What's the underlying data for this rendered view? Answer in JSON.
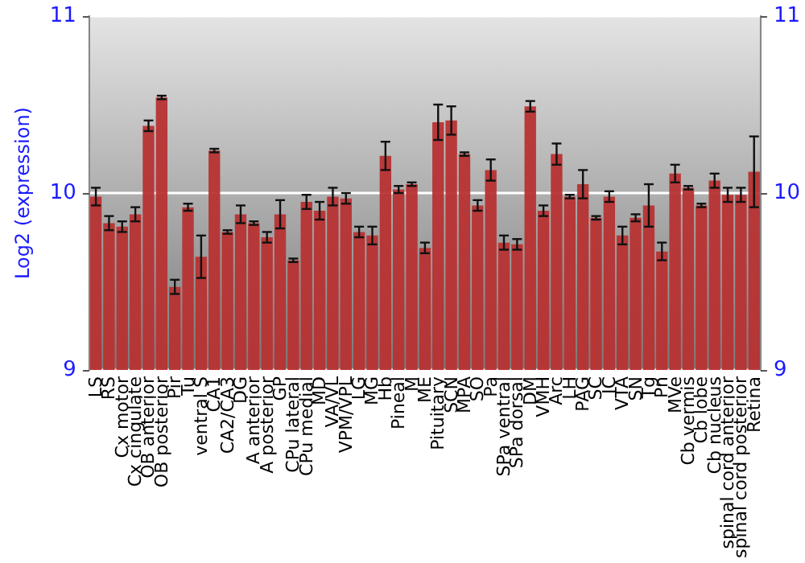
{
  "chart_data": {
    "type": "bar",
    "ylabel": "Log2 (expression)",
    "categories": [
      "LS",
      "RS",
      "Cx motor",
      "Cx cingulate",
      "OB anterior",
      "OB posterior",
      "Pir",
      "Tu",
      "ventral S",
      "CA1",
      "CA2/CA3",
      "DG",
      "A anterior",
      "A posterior",
      "GP",
      "CPu lateral",
      "CPu medial",
      "MD",
      "VA/VL",
      "VPM/VPL",
      "LG",
      "MG",
      "Hb",
      "Pineal",
      "M",
      "ME",
      "Pituitary",
      "SCN",
      "MPA",
      "SO",
      "Pa",
      "SPa ventral",
      "SPa dorsal",
      "DM",
      "VMH",
      "Arc",
      "LH",
      "PAG",
      "SC",
      "IC",
      "VTA",
      "SN",
      "Tg",
      "Pn",
      "MVe",
      "Cb vermis",
      "Cb lobe",
      "Cb nucleus",
      "spinal cord anterior",
      "spinal cord posterior",
      "Retina"
    ],
    "values": [
      9.98,
      9.83,
      9.81,
      9.88,
      10.38,
      10.54,
      9.47,
      9.92,
      9.64,
      10.24,
      9.78,
      9.88,
      9.83,
      9.75,
      9.88,
      9.62,
      9.95,
      9.9,
      9.98,
      9.97,
      9.78,
      9.76,
      10.21,
      10.02,
      10.05,
      9.69,
      10.4,
      10.41,
      10.22,
      9.93,
      10.13,
      9.72,
      9.71,
      10.49,
      9.9,
      10.22,
      9.98,
      10.05,
      9.86,
      9.98,
      9.76,
      9.86,
      9.93,
      9.67,
      10.11,
      10.03,
      9.93,
      10.07,
      9.99,
      9.99,
      10.12
    ],
    "errors": [
      0.05,
      0.04,
      0.03,
      0.04,
      0.03,
      0.01,
      0.04,
      0.02,
      0.12,
      0.01,
      0.01,
      0.05,
      0.01,
      0.03,
      0.08,
      0.01,
      0.04,
      0.05,
      0.05,
      0.03,
      0.03,
      0.05,
      0.08,
      0.02,
      0.01,
      0.03,
      0.1,
      0.08,
      0.01,
      0.03,
      0.06,
      0.04,
      0.03,
      0.03,
      0.03,
      0.06,
      0.01,
      0.08,
      0.01,
      0.03,
      0.05,
      0.02,
      0.12,
      0.05,
      0.05,
      0.01,
      0.01,
      0.04,
      0.04,
      0.04,
      0.2
    ],
    "color": "#b83232",
    "ylim": [
      9,
      11
    ],
    "yticks": [
      9,
      10,
      11
    ],
    "y2lim": [
      9,
      11
    ],
    "y2ticks": [
      9,
      10,
      11
    ],
    "grid": "y"
  }
}
